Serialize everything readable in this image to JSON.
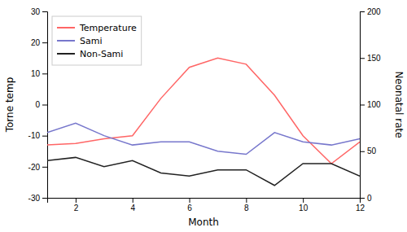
{
  "chart_data": {
    "type": "line",
    "xlabel": "Month",
    "ylabel": "Torne temp",
    "y2label": "Neonatal rate",
    "x": [
      1,
      2,
      3,
      4,
      5,
      6,
      7,
      8,
      9,
      10,
      11,
      12
    ],
    "series": [
      {
        "name": "Temperature",
        "color": "#FF6666",
        "values": [
          -13,
          -12.5,
          -11,
          -10,
          2,
          12,
          15,
          13,
          3,
          -10,
          -19,
          -12
        ]
      },
      {
        "name": "Sami",
        "color": "#7777CC",
        "values": [
          -9,
          -6,
          -10,
          -13,
          -12,
          -12,
          -15,
          -16,
          -9,
          -12,
          -13,
          -11
        ]
      },
      {
        "name": "Non-Sami",
        "color": "#222222",
        "values": [
          -18,
          -17,
          -20,
          -18,
          -22,
          -23,
          -21,
          -21,
          -26,
          -19,
          -19,
          -23
        ]
      }
    ],
    "xlim": [
      1,
      12
    ],
    "xticks": [
      2,
      4,
      6,
      8,
      10,
      12
    ],
    "ylim": [
      -30,
      30
    ],
    "yticks": [
      -30,
      -20,
      -10,
      0,
      10,
      20,
      30
    ],
    "y2lim": [
      0,
      200
    ],
    "y2ticks": [
      0,
      50,
      100,
      150,
      200
    ],
    "grid": false,
    "legend": "upper-left"
  }
}
